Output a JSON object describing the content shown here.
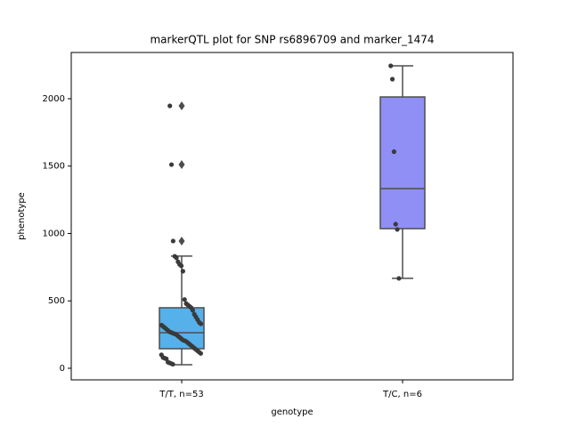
{
  "chart_data": {
    "type": "box",
    "title": "markerQTL plot for SNP rs6896709 and marker_1474",
    "xlabel": "genotype",
    "ylabel": "phenotype",
    "categories": [
      "T/T, n=53",
      "T/C, n=6"
    ],
    "ylim": [
      -86,
      2343
    ],
    "yticks": [
      0,
      500,
      1000,
      1500,
      2000
    ],
    "boxes": [
      {
        "color": "#56b0ea",
        "whislo": 26,
        "q1": 145,
        "median": 264,
        "q3": 449,
        "whishi": 832,
        "fliers": [
          1947,
          1511,
          944
        ]
      },
      {
        "color": "#8f8ff5",
        "whislo": 667,
        "q1": 1036,
        "median": 1333,
        "q3": 2013,
        "whishi": 2244,
        "fliers": []
      }
    ],
    "points": [
      [
        1947,
        1511,
        944,
        831,
        820,
        790,
        770,
        760,
        720,
        510,
        480,
        470,
        460,
        450,
        430,
        400,
        380,
        360,
        340,
        330,
        320,
        310,
        300,
        290,
        280,
        270,
        265,
        260,
        255,
        250,
        240,
        230,
        220,
        210,
        205,
        200,
        190,
        180,
        170,
        160,
        150,
        140,
        130,
        120,
        110,
        100,
        80,
        75,
        70,
        45,
        40,
        35,
        30
      ],
      [
        2244,
        2145,
        1607,
        1069,
        1030,
        667
      ]
    ]
  }
}
